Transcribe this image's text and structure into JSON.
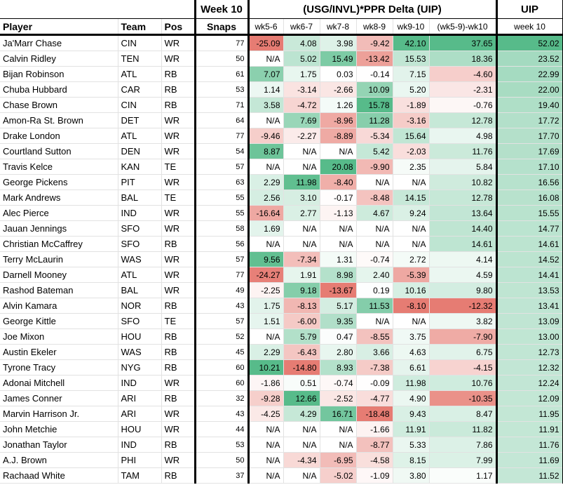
{
  "header": {
    "week_label": "Week 10",
    "delta_title": "(USG/INVL)*PPR Delta (UIP)",
    "uip_label": "UIP",
    "col_player": "Player",
    "col_team": "Team",
    "col_pos": "Pos",
    "col_snaps": "Snaps",
    "col_wk56": "wk5-6",
    "col_wk67": "wk6-7",
    "col_wk78": "wk7-8",
    "col_wk89": "wk8-9",
    "col_wk910": "wk9-10",
    "col_diff": "(wk5-9)-wk10",
    "col_week10": "week 10"
  },
  "rows": [
    {
      "player": "Ja'Marr Chase",
      "team": "CIN",
      "pos": "WR",
      "snaps": "77",
      "wk56": "-25.09",
      "wk67": "4.08",
      "wk78": "3.98",
      "wk89": "-9.42",
      "wk910": "42.10",
      "diff": "37.65",
      "uip": "52.02"
    },
    {
      "player": "Calvin Ridley",
      "team": "TEN",
      "pos": "WR",
      "snaps": "50",
      "wk56": "N/A",
      "wk67": "5.02",
      "wk78": "15.49",
      "wk89": "-13.42",
      "wk910": "15.53",
      "diff": "18.36",
      "uip": "23.52"
    },
    {
      "player": "Bijan Robinson",
      "team": "ATL",
      "pos": "RB",
      "snaps": "61",
      "wk56": "7.07",
      "wk67": "1.75",
      "wk78": "0.03",
      "wk89": "-0.14",
      "wk910": "7.15",
      "diff": "-4.60",
      "uip": "22.99"
    },
    {
      "player": "Chuba Hubbard",
      "team": "CAR",
      "pos": "RB",
      "snaps": "53",
      "wk56": "1.14",
      "wk67": "-3.14",
      "wk78": "-2.66",
      "wk89": "10.09",
      "wk910": "5.20",
      "diff": "-2.31",
      "uip": "22.00"
    },
    {
      "player": "Chase Brown",
      "team": "CIN",
      "pos": "RB",
      "snaps": "71",
      "wk56": "3.58",
      "wk67": "-4.72",
      "wk78": "1.26",
      "wk89": "15.78",
      "wk910": "-1.89",
      "diff": "-0.76",
      "uip": "19.40"
    },
    {
      "player": "Amon-Ra St. Brown",
      "team": "DET",
      "pos": "WR",
      "snaps": "64",
      "wk56": "N/A",
      "wk67": "7.69",
      "wk78": "-8.96",
      "wk89": "11.28",
      "wk910": "-3.16",
      "diff": "12.78",
      "uip": "17.72"
    },
    {
      "player": "Drake London",
      "team": "ATL",
      "pos": "WR",
      "snaps": "77",
      "wk56": "-9.46",
      "wk67": "-2.27",
      "wk78": "-8.89",
      "wk89": "-5.34",
      "wk910": "15.64",
      "diff": "4.98",
      "uip": "17.70"
    },
    {
      "player": "Courtland Sutton",
      "team": "DEN",
      "pos": "WR",
      "snaps": "54",
      "wk56": "8.87",
      "wk67": "N/A",
      "wk78": "N/A",
      "wk89": "5.42",
      "wk910": "-2.03",
      "diff": "11.76",
      "uip": "17.69"
    },
    {
      "player": "Travis Kelce",
      "team": "KAN",
      "pos": "TE",
      "snaps": "57",
      "wk56": "N/A",
      "wk67": "N/A",
      "wk78": "20.08",
      "wk89": "-9.90",
      "wk910": "2.35",
      "diff": "5.84",
      "uip": "17.10"
    },
    {
      "player": "George Pickens",
      "team": "PIT",
      "pos": "WR",
      "snaps": "63",
      "wk56": "2.29",
      "wk67": "11.98",
      "wk78": "-8.40",
      "wk89": "N/A",
      "wk910": "N/A",
      "diff": "10.82",
      "uip": "16.56"
    },
    {
      "player": "Mark Andrews",
      "team": "BAL",
      "pos": "TE",
      "snaps": "55",
      "wk56": "2.56",
      "wk67": "3.10",
      "wk78": "-0.17",
      "wk89": "-8.48",
      "wk910": "14.15",
      "diff": "12.78",
      "uip": "16.08"
    },
    {
      "player": "Alec Pierce",
      "team": "IND",
      "pos": "WR",
      "snaps": "55",
      "wk56": "-16.64",
      "wk67": "2.77",
      "wk78": "-1.13",
      "wk89": "4.67",
      "wk910": "9.24",
      "diff": "13.64",
      "uip": "15.55"
    },
    {
      "player": "Jauan Jennings",
      "team": "SFO",
      "pos": "WR",
      "snaps": "58",
      "wk56": "1.69",
      "wk67": "N/A",
      "wk78": "N/A",
      "wk89": "N/A",
      "wk910": "N/A",
      "diff": "14.40",
      "uip": "14.77"
    },
    {
      "player": "Christian McCaffrey",
      "team": "SFO",
      "pos": "RB",
      "snaps": "56",
      "wk56": "N/A",
      "wk67": "N/A",
      "wk78": "N/A",
      "wk89": "N/A",
      "wk910": "N/A",
      "diff": "14.61",
      "uip": "14.61"
    },
    {
      "player": "Terry McLaurin",
      "team": "WAS",
      "pos": "WR",
      "snaps": "57",
      "wk56": "9.56",
      "wk67": "-7.34",
      "wk78": "1.31",
      "wk89": "-0.74",
      "wk910": "2.72",
      "diff": "4.14",
      "uip": "14.52"
    },
    {
      "player": "Darnell Mooney",
      "team": "ATL",
      "pos": "WR",
      "snaps": "77",
      "wk56": "-24.27",
      "wk67": "1.91",
      "wk78": "8.98",
      "wk89": "2.40",
      "wk910": "-5.39",
      "diff": "4.59",
      "uip": "14.41"
    },
    {
      "player": "Rashod Bateman",
      "team": "BAL",
      "pos": "WR",
      "snaps": "49",
      "wk56": "-2.25",
      "wk67": "9.18",
      "wk78": "-13.67",
      "wk89": "0.19",
      "wk910": "10.16",
      "diff": "9.80",
      "uip": "13.53"
    },
    {
      "player": "Alvin Kamara",
      "team": "NOR",
      "pos": "RB",
      "snaps": "43",
      "wk56": "1.75",
      "wk67": "-8.13",
      "wk78": "5.17",
      "wk89": "11.53",
      "wk910": "-8.10",
      "diff": "-12.32",
      "uip": "13.41"
    },
    {
      "player": "George Kittle",
      "team": "SFO",
      "pos": "TE",
      "snaps": "57",
      "wk56": "1.51",
      "wk67": "-6.00",
      "wk78": "9.35",
      "wk89": "N/A",
      "wk910": "N/A",
      "diff": "3.82",
      "uip": "13.09"
    },
    {
      "player": "Joe Mixon",
      "team": "HOU",
      "pos": "RB",
      "snaps": "52",
      "wk56": "N/A",
      "wk67": "5.79",
      "wk78": "0.47",
      "wk89": "-8.55",
      "wk910": "3.75",
      "diff": "-7.90",
      "uip": "13.00"
    },
    {
      "player": "Austin Ekeler",
      "team": "WAS",
      "pos": "RB",
      "snaps": "45",
      "wk56": "2.29",
      "wk67": "-6.43",
      "wk78": "2.80",
      "wk89": "3.66",
      "wk910": "4.63",
      "diff": "6.75",
      "uip": "12.73"
    },
    {
      "player": "Tyrone Tracy",
      "team": "NYG",
      "pos": "RB",
      "snaps": "60",
      "wk56": "10.21",
      "wk67": "-14.80",
      "wk78": "8.93",
      "wk89": "-7.38",
      "wk910": "6.61",
      "diff": "-4.15",
      "uip": "12.32"
    },
    {
      "player": "Adonai Mitchell",
      "team": "IND",
      "pos": "WR",
      "snaps": "60",
      "wk56": "-1.86",
      "wk67": "0.51",
      "wk78": "-0.74",
      "wk89": "-0.09",
      "wk910": "11.98",
      "diff": "10.76",
      "uip": "12.24"
    },
    {
      "player": "James Conner",
      "team": "ARI",
      "pos": "RB",
      "snaps": "32",
      "wk56": "-9.28",
      "wk67": "12.66",
      "wk78": "-2.52",
      "wk89": "-4.77",
      "wk910": "4.90",
      "diff": "-10.35",
      "uip": "12.09"
    },
    {
      "player": "Marvin Harrison Jr.",
      "team": "ARI",
      "pos": "WR",
      "snaps": "43",
      "wk56": "-4.25",
      "wk67": "4.29",
      "wk78": "16.71",
      "wk89": "-18.48",
      "wk910": "9.43",
      "diff": "8.47",
      "uip": "11.95"
    },
    {
      "player": "John Metchie",
      "team": "HOU",
      "pos": "WR",
      "snaps": "44",
      "wk56": "N/A",
      "wk67": "N/A",
      "wk78": "N/A",
      "wk89": "-1.66",
      "wk910": "11.91",
      "diff": "11.82",
      "uip": "11.91"
    },
    {
      "player": "Jonathan Taylor",
      "team": "IND",
      "pos": "RB",
      "snaps": "53",
      "wk56": "N/A",
      "wk67": "N/A",
      "wk78": "N/A",
      "wk89": "-8.77",
      "wk910": "5.33",
      "diff": "7.86",
      "uip": "11.76"
    },
    {
      "player": "A.J. Brown",
      "team": "PHI",
      "pos": "WR",
      "snaps": "50",
      "wk56": "N/A",
      "wk67": "-4.34",
      "wk78": "-6.95",
      "wk89": "-4.58",
      "wk910": "8.15",
      "diff": "7.99",
      "uip": "11.69"
    },
    {
      "player": "Rachaad White",
      "team": "TAM",
      "pos": "RB",
      "snaps": "37",
      "wk56": "N/A",
      "wk67": "N/A",
      "wk78": "-5.02",
      "wk89": "-1.09",
      "wk910": "3.80",
      "diff": "1.17",
      "uip": "11.52"
    }
  ],
  "colors": {
    "strong_red": "#e67c73",
    "strong_green": "#57bb8a",
    "neutral": "#ffffff"
  }
}
